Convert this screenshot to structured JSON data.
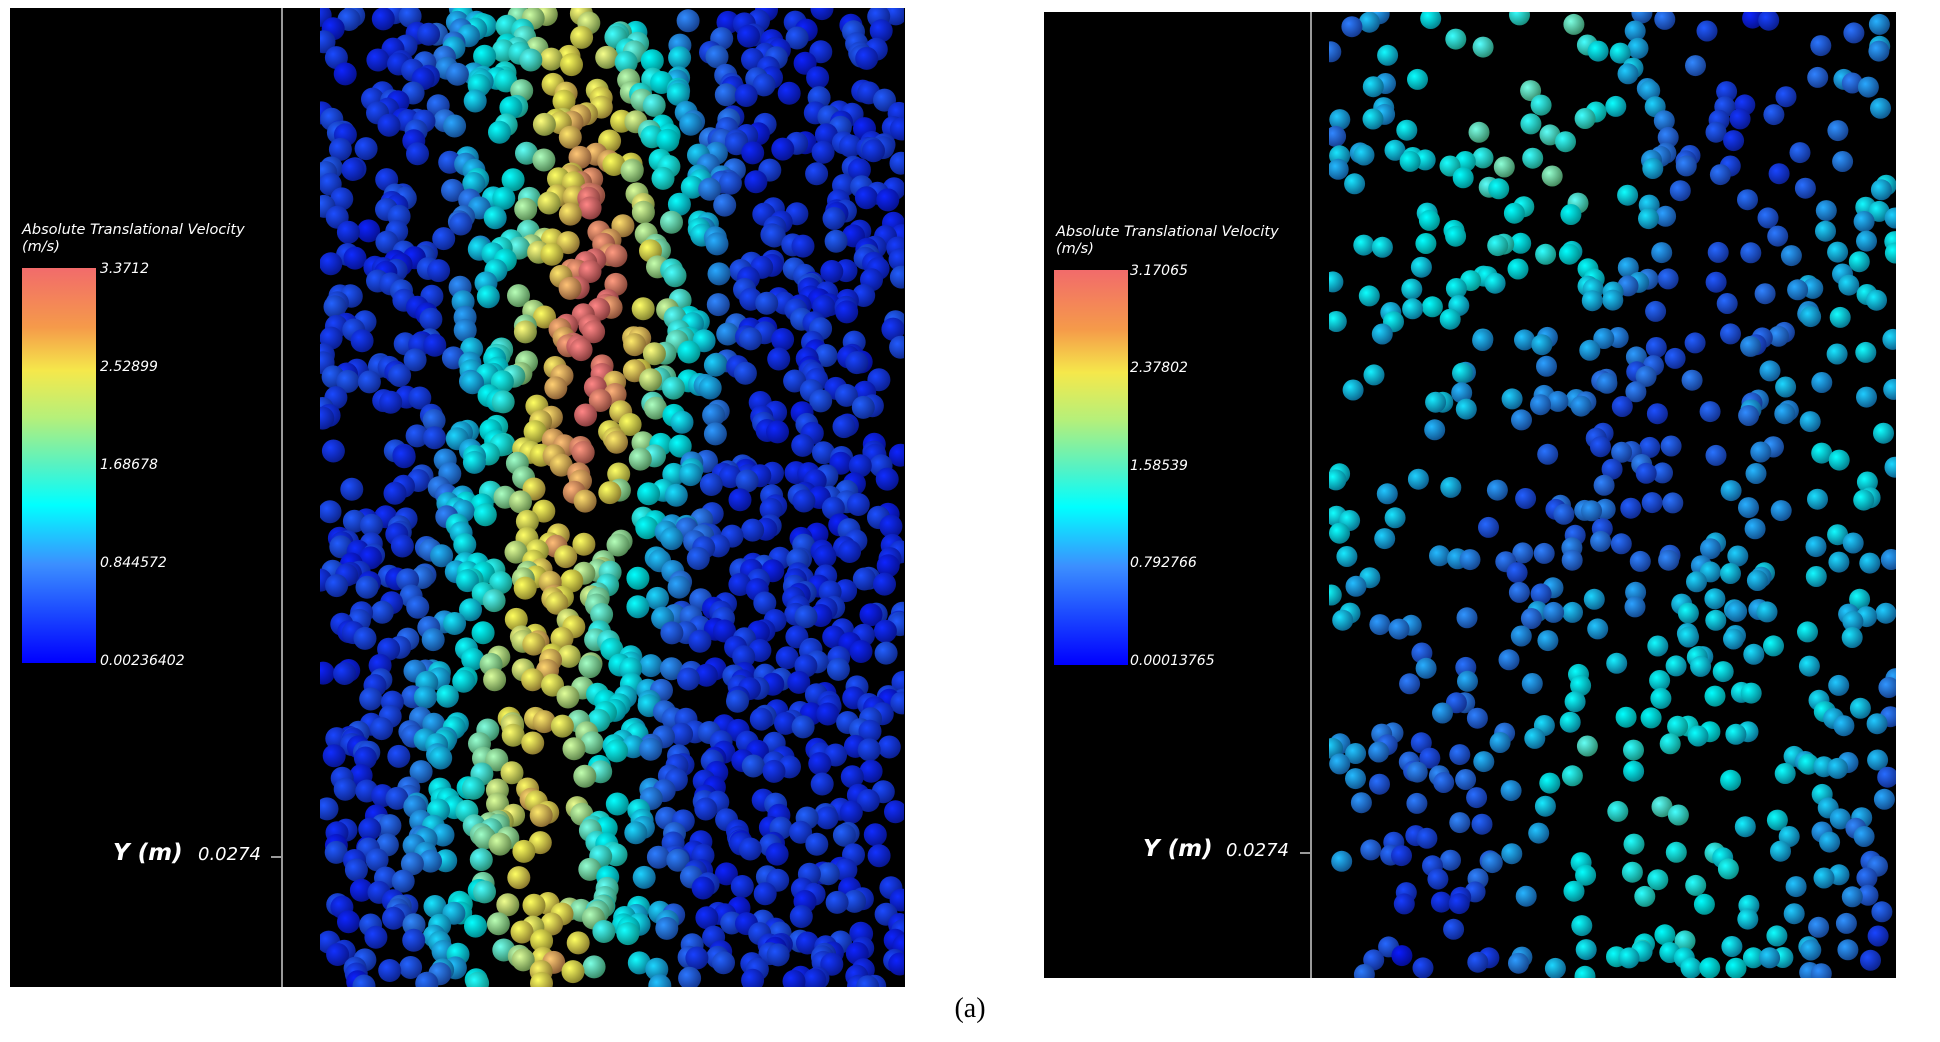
{
  "colors": {
    "background": "#000000",
    "axis_line": "#9a9a9a",
    "low_velocity": "#0000ff",
    "mid_velocity": "#00ffff",
    "high_velocity": "#f26b6b"
  },
  "panels": [
    {
      "legend_title_line1": "Absolute Translational Velocity",
      "legend_title_line2": "(m/s)",
      "ticks": [
        "3.3712",
        "2.52899",
        "1.68678",
        "0.844572",
        "0.00236402"
      ],
      "axis_name": "Y (m)",
      "axis_value": "0.0274"
    },
    {
      "legend_title_line1": "Absolute Translational Velocity",
      "legend_title_line2": "(m/s)",
      "ticks": [
        "3.17065",
        "2.37802",
        "1.58539",
        "0.792766",
        "0.00013765"
      ],
      "axis_name": "Y (m)",
      "axis_value": "0.0274"
    }
  ],
  "caption": "(a)"
}
